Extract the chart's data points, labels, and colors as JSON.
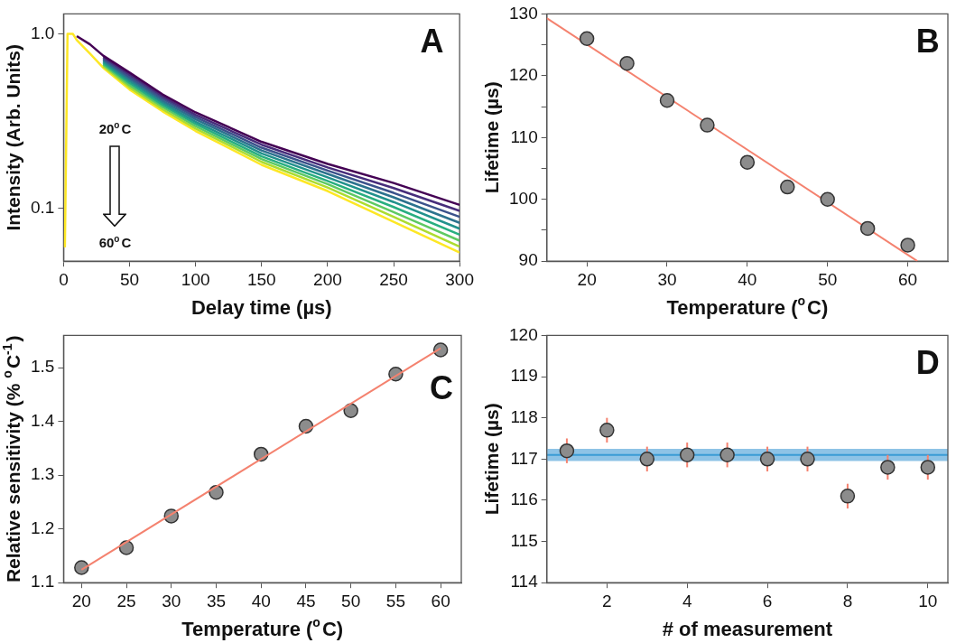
{
  "chart_data": [
    {
      "type": "line",
      "xlabel": "Delay time (µs)",
      "ylabel": "Intensity (Arb. Units)",
      "log": "y",
      "marker": "none",
      "xlim": [
        0,
        300
      ],
      "xticks": [
        0,
        50,
        100,
        150,
        200,
        250,
        300
      ],
      "ylim": [
        0.05,
        1.3
      ],
      "yticks": [
        0.1,
        {
          "value": 1,
          "label": "1.0"
        }
      ],
      "annotations": [
        "A",
        "20$^{o}$C",
        "60$^{o}$C"
      ],
      "x": [
        1,
        3,
        7,
        10,
        20,
        30,
        50,
        75,
        100,
        150,
        200,
        250,
        300
      ],
      "series": [
        {
          "color": "#440154",
          "values": [
            null,
            null,
            null,
            0.97,
            0.87,
            0.75,
            0.6,
            0.45,
            0.355,
            0.241,
            0.18,
            0.14,
            0.105
          ]
        },
        {
          "color": "#472d7b",
          "values": [
            null,
            null,
            null,
            null,
            null,
            0.735,
            0.584,
            0.438,
            0.344,
            0.232,
            0.172,
            0.131,
            0.097
          ]
        },
        {
          "color": "#3b528b",
          "values": [
            null,
            null,
            null,
            null,
            null,
            0.721,
            0.567,
            0.426,
            0.334,
            0.223,
            0.165,
            0.123,
            0.0897
          ]
        },
        {
          "color": "#2c728e",
          "values": [
            null,
            null,
            null,
            null,
            null,
            0.707,
            0.552,
            0.414,
            0.324,
            0.215,
            0.158,
            0.116,
            0.0829
          ]
        },
        {
          "color": "#21918c",
          "values": [
            null,
            null,
            null,
            null,
            null,
            0.693,
            0.537,
            0.403,
            0.314,
            0.207,
            0.151,
            0.109,
            0.0767
          ]
        },
        {
          "color": "#28ae80",
          "values": [
            null,
            null,
            null,
            null,
            null,
            0.679,
            0.522,
            0.392,
            0.305,
            0.199,
            0.144,
            0.102,
            0.0709
          ]
        },
        {
          "color": "#5ec962",
          "values": [
            null,
            null,
            null,
            null,
            null,
            0.666,
            0.507,
            0.381,
            0.296,
            0.192,
            0.138,
            0.0955,
            0.0655
          ]
        },
        {
          "color": "#addc30",
          "values": [
            null,
            null,
            null,
            null,
            null,
            0.653,
            0.493,
            0.37,
            0.287,
            0.185,
            0.132,
            0.0896,
            0.0606
          ]
        },
        {
          "color": "#fde725",
          "values": [
            0.06,
            1.0,
            1.0,
            0.92,
            0.77,
            0.64,
            0.48,
            0.36,
            0.278,
            0.178,
            0.126,
            0.084,
            0.056
          ]
        }
      ]
    },
    {
      "type": "scatter",
      "xlabel": "Temperature ($^{o}$C)",
      "ylabel": "Lifetime (µs)",
      "marker": "circle",
      "xlim": [
        15,
        65
      ],
      "xticks": [
        20,
        30,
        40,
        50,
        60
      ],
      "ylim": [
        90,
        130
      ],
      "yticks": [
        90,
        {
          "value": 95,
          "label": null
        },
        100,
        {
          "value": 105,
          "label": null
        },
        110,
        {
          "value": 115,
          "label": null
        },
        120,
        {
          "value": 125,
          "label": null
        },
        130
      ],
      "annotations": [
        "B"
      ],
      "series": [
        {
          "type": "scatter",
          "color": "#8c8c8c",
          "x": [
            20,
            25,
            30,
            35,
            40,
            45,
            50,
            55,
            60
          ],
          "values": [
            126,
            122,
            116,
            112,
            106,
            102,
            100,
            95.3,
            92.6
          ]
        },
        {
          "type": "line",
          "marker": "none",
          "color": "#f4826f",
          "x": [
            15,
            61.2
          ],
          "values": [
            129.3,
            90
          ]
        }
      ]
    },
    {
      "type": "scatter",
      "xlabel": "Temperature ($^{o}$C)",
      "ylabel": "Relative sensitivity (% $^{o}$C$^{-1}$)",
      "marker": "circle",
      "xlim": [
        18,
        62.3
      ],
      "xticks": [
        20,
        25,
        30,
        35,
        40,
        45,
        50,
        55,
        60
      ],
      "ylim": [
        1.1,
        1.56
      ],
      "yticks": [
        1.1,
        1.2,
        1.3,
        1.4,
        1.5
      ],
      "annotations": [
        "C"
      ],
      "series": [
        {
          "type": "line",
          "marker": "none",
          "color": "#f4826f",
          "x": [
            20,
            60
          ],
          "values": [
            1.124,
            1.536
          ]
        },
        {
          "type": "scatter",
          "color": "#8c8c8c",
          "x": [
            20,
            25,
            30,
            35,
            40,
            45,
            50,
            55,
            60
          ],
          "values": [
            1.128,
            1.165,
            1.224,
            1.268,
            1.339,
            1.391,
            1.42,
            1.488,
            1.533
          ]
        }
      ]
    },
    {
      "type": "scatter",
      "xlabel": "# of measurement",
      "ylabel": "Lifetime (µs)",
      "marker": "circle",
      "xlim": [
        0.5,
        10.5
      ],
      "xticks": [
        2,
        4,
        6,
        8,
        10
      ],
      "ylim": [
        114,
        120
      ],
      "yticks": [
        114,
        115,
        116,
        117,
        118,
        119,
        120
      ],
      "annotations": [
        "D"
      ],
      "x": [
        1,
        2,
        3,
        4,
        5,
        6,
        7,
        8,
        9,
        10
      ],
      "color": "#8c8c8c",
      "values": [
        117.2,
        117.7,
        117.0,
        117.1,
        117.1,
        117.0,
        117.0,
        116.1,
        116.8,
        116.8
      ],
      "errors": [
        0.3,
        0.3,
        0.3,
        0.3,
        0.3,
        0.3,
        0.3,
        0.3,
        0.3,
        0.3
      ],
      "ref_lines": [
        {
          "axis": "y",
          "value": 117.1,
          "color": "#3a9bd5"
        }
      ],
      "bands": [
        {
          "axis": "y",
          "from": 116.95,
          "to": 117.25,
          "color": "#8ec3e6"
        }
      ]
    }
  ]
}
